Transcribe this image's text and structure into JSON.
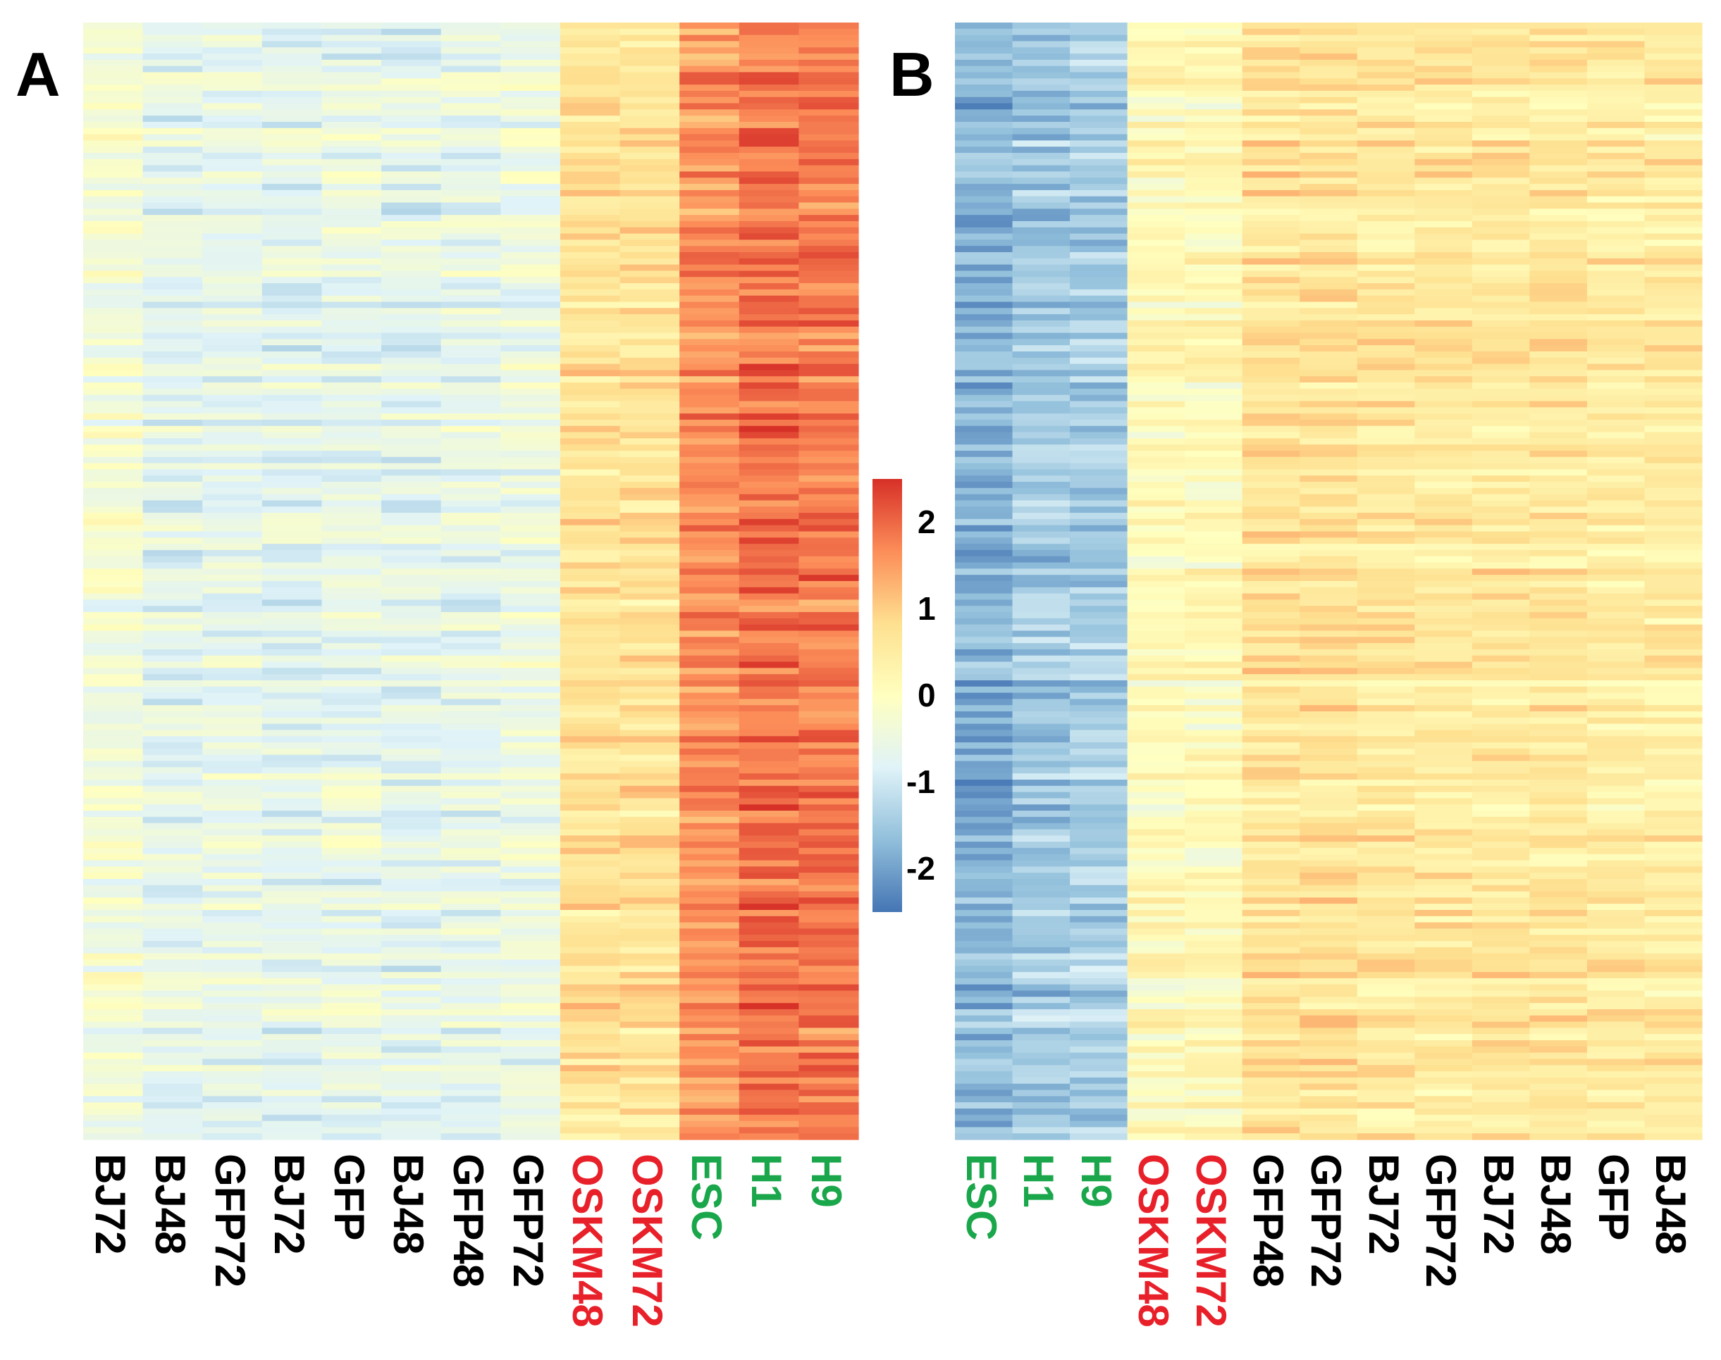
{
  "panels": [
    {
      "letter": "A"
    },
    {
      "letter": "B"
    }
  ],
  "colorbar": {
    "ticks": [
      "2",
      "1",
      "0",
      "-1",
      "-2"
    ],
    "tick_values": [
      2,
      1,
      0,
      -1,
      -2
    ],
    "range": [
      -2.5,
      2.5
    ],
    "colors": [
      "#4575b4",
      "#91bfdb",
      "#e0f3f8",
      "#ffffbf",
      "#fee090",
      "#fc8d59",
      "#d73027"
    ]
  },
  "label_colors": {
    "black": "#000000",
    "red": "#e8202a",
    "green": "#1aa64a"
  },
  "chart_data": [
    {
      "type": "heatmap",
      "panel": "A",
      "columns": [
        "BJ72",
        "BJ48",
        "GFP72",
        "BJ72",
        "GFP",
        "BJ48",
        "GFP48",
        "GFP72",
        "OSKM48",
        "OSKM72",
        "ESC",
        "H1",
        "H9"
      ],
      "column_label_colors": [
        "black",
        "black",
        "black",
        "black",
        "black",
        "black",
        "black",
        "black",
        "red",
        "red",
        "green",
        "green",
        "green"
      ],
      "column_mean_values": [
        -0.3,
        -0.7,
        -0.6,
        -0.7,
        -0.6,
        -0.7,
        -0.6,
        -0.5,
        0.7,
        0.7,
        1.6,
        1.9,
        1.8
      ],
      "row_count": 180,
      "value_range": [
        -2.5,
        2.5
      ]
    },
    {
      "type": "heatmap",
      "panel": "B",
      "columns": [
        "ESC",
        "H1",
        "H9",
        "OSKM48",
        "OSKM72",
        "GFP48",
        "GFP72",
        "BJ72",
        "GFP72",
        "BJ72",
        "BJ48",
        "GFP",
        "BJ48"
      ],
      "column_label_colors": [
        "green",
        "green",
        "green",
        "red",
        "red",
        "black",
        "black",
        "black",
        "black",
        "black",
        "black",
        "black",
        "black"
      ],
      "column_mean_values": [
        -1.8,
        -1.5,
        -1.4,
        0.1,
        0.1,
        0.7,
        0.7,
        0.6,
        0.6,
        0.6,
        0.6,
        0.5,
        0.5
      ],
      "row_count": 180,
      "value_range": [
        -2.5,
        2.5
      ]
    }
  ]
}
